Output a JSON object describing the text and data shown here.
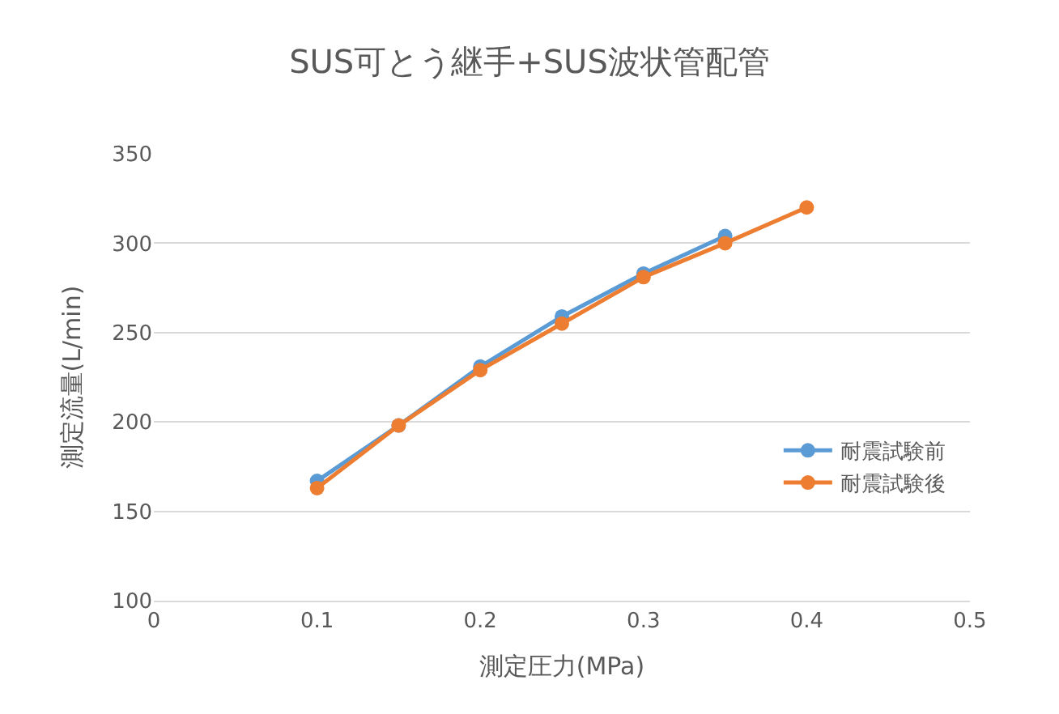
{
  "chart_data": {
    "type": "line",
    "title": "SUS可とう継手+SUS波状管配管",
    "xlabel": "測定圧力(MPa)",
    "ylabel": "測定流量(L/min)",
    "xlim": [
      0,
      0.5
    ],
    "xticks": [
      0,
      0.1,
      0.2,
      0.3,
      0.4,
      0.5
    ],
    "ylim": [
      100,
      350
    ],
    "yticks": [
      100,
      150,
      200,
      250,
      300,
      350
    ],
    "grid": "y",
    "legend": "right",
    "marker": "circle",
    "line_style": "solid",
    "series": [
      {
        "name": "耐震試験前",
        "color": "#5b9bd5",
        "x": [
          0.1,
          0.15,
          0.2,
          0.25,
          0.3,
          0.35
        ],
        "values": [
          167,
          198,
          231,
          259,
          283,
          304
        ]
      },
      {
        "name": "耐震試験後",
        "color": "#ed7d31",
        "x": [
          0.1,
          0.15,
          0.2,
          0.25,
          0.3,
          0.35,
          0.4
        ],
        "values": [
          163,
          198,
          229,
          255,
          281,
          300,
          320
        ]
      }
    ]
  }
}
